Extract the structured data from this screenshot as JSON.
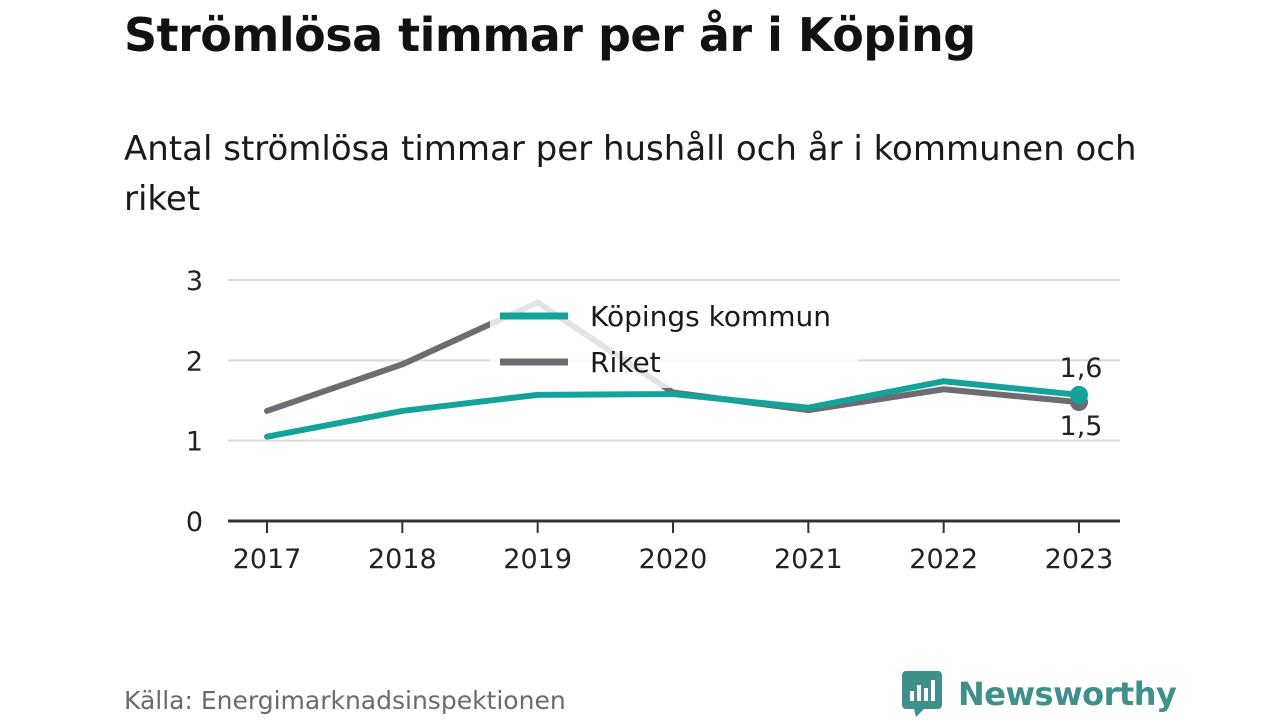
{
  "title": "Strömlösa timmar per år i Köping",
  "subtitle": "Antal strömlösa timmar per hushåll och år i kommunen och riket",
  "source": "Källa: Energimarknadsinspektionen",
  "brand": {
    "name": "Newsworthy",
    "icon": "newsworthy-logo-icon",
    "color": "#3f8f8a"
  },
  "chart_data": {
    "type": "line",
    "x": [
      "2017",
      "2018",
      "2019",
      "2020",
      "2021",
      "2022",
      "2023"
    ],
    "y_ticks": [
      "0",
      "1",
      "2",
      "3"
    ],
    "ylim": [
      0,
      3
    ],
    "grid": true,
    "legend_placement": "top-center",
    "series": [
      {
        "name": "Riket",
        "color": "#6e6c72",
        "values": [
          1.37,
          1.95,
          2.72,
          1.6,
          1.38,
          1.64,
          1.48
        ],
        "end_label": "1,5"
      },
      {
        "name": "Köpings kommun",
        "color": "#14a39a",
        "values": [
          1.05,
          1.37,
          1.57,
          1.58,
          1.41,
          1.74,
          1.57
        ],
        "end_label": "1,6"
      }
    ]
  }
}
